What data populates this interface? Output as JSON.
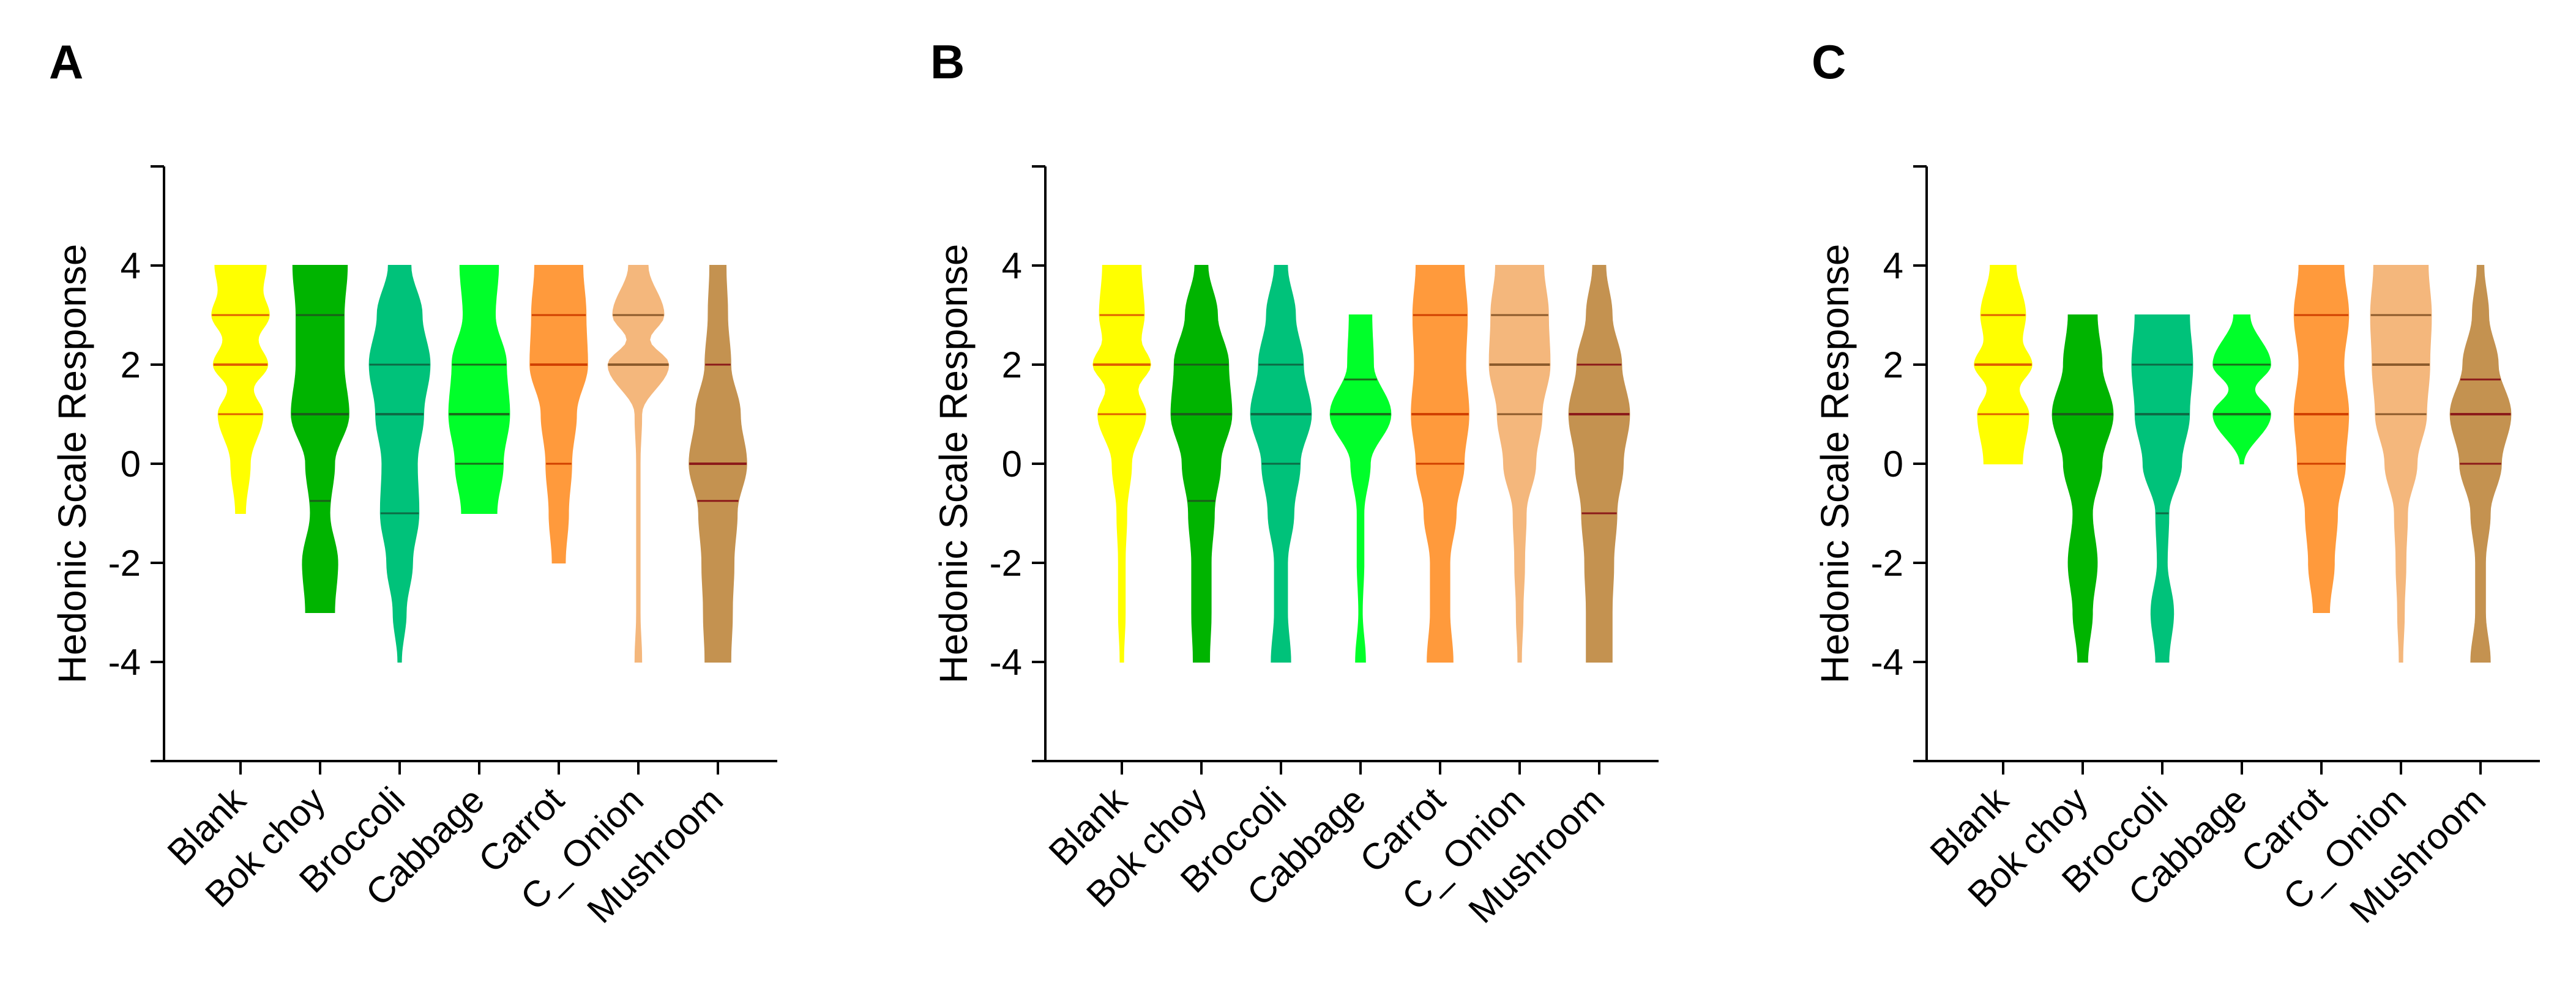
{
  "figure": {
    "panels": [
      "A",
      "B",
      "C"
    ]
  },
  "chart_data": [
    {
      "type": "violin",
      "panel": "A",
      "title": "",
      "xlabel": "",
      "ylabel": "Hedonic Scale Response",
      "ylim": [
        -6,
        6
      ],
      "yticks": [
        -4,
        -2,
        0,
        2,
        4
      ],
      "categories": [
        "Blank",
        "Bok choy",
        "Broccoli",
        "Cabbage",
        "Carrot",
        "C_ Onion",
        "Mushroom"
      ],
      "colors": [
        "#ffff00",
        "#00b400",
        "#00c27a",
        "#00ff2a",
        "#ff9a3c",
        "#f4b77c",
        "#c49250"
      ],
      "series": [
        {
          "name": "Blank",
          "min": -1,
          "max": 4,
          "q1": 1,
          "median": 2,
          "q3": 3,
          "line_color": "#e06000",
          "profile": [
            [
              -1,
              0.15
            ],
            [
              0,
              0.3
            ],
            [
              1,
              0.7
            ],
            [
              1.5,
              0.4
            ],
            [
              2,
              0.85
            ],
            [
              2.5,
              0.55
            ],
            [
              3,
              0.9
            ],
            [
              3.5,
              0.7
            ],
            [
              4,
              0.8
            ]
          ]
        },
        {
          "name": "Bok choy",
          "min": -3,
          "max": 4,
          "q1": -0.75,
          "median": 1,
          "q3": 3,
          "line_color": "#1a5e1a",
          "profile": [
            [
              -3,
              0.45
            ],
            [
              -2,
              0.55
            ],
            [
              -1,
              0.3
            ],
            [
              0,
              0.45
            ],
            [
              1,
              0.9
            ],
            [
              2,
              0.75
            ],
            [
              3,
              0.75
            ],
            [
              4,
              0.85
            ]
          ]
        },
        {
          "name": "Broccoli",
          "min": -4,
          "max": 4,
          "q1": -1,
          "median": 1,
          "q3": 2,
          "line_color": "#0d6b45",
          "profile": [
            [
              -4,
              0.05
            ],
            [
              -3,
              0.2
            ],
            [
              -2,
              0.4
            ],
            [
              -1,
              0.6
            ],
            [
              0,
              0.55
            ],
            [
              1,
              0.75
            ],
            [
              2,
              0.95
            ],
            [
              3,
              0.7
            ],
            [
              4,
              0.35
            ]
          ]
        },
        {
          "name": "Cabbage",
          "min": -1,
          "max": 4,
          "q1": 0,
          "median": 1,
          "q3": 2,
          "line_color": "#1a6e1a",
          "profile": [
            [
              -1,
              0.55
            ],
            [
              0,
              0.75
            ],
            [
              1,
              0.95
            ],
            [
              2,
              0.85
            ],
            [
              3,
              0.5
            ],
            [
              4,
              0.6
            ]
          ]
        },
        {
          "name": "Carrot",
          "min": -2,
          "max": 4,
          "q1": 0,
          "median": 2,
          "q3": 3,
          "line_color": "#d04000",
          "profile": [
            [
              -2,
              0.2
            ],
            [
              -1,
              0.3
            ],
            [
              0,
              0.4
            ],
            [
              1,
              0.55
            ],
            [
              2,
              0.9
            ],
            [
              3,
              0.85
            ],
            [
              4,
              0.75
            ]
          ]
        },
        {
          "name": "C_ Onion",
          "min": -4,
          "max": 4,
          "q1": 2,
          "median": 2,
          "q3": 3,
          "line_color": "#8b5a2b",
          "profile": [
            [
              -4,
              0.1
            ],
            [
              -3,
              0.05
            ],
            [
              -1,
              0.05
            ],
            [
              0,
              0.05
            ],
            [
              1,
              0.1
            ],
            [
              2,
              0.95
            ],
            [
              2.5,
              0.35
            ],
            [
              3,
              0.8
            ],
            [
              4,
              0.3
            ]
          ]
        },
        {
          "name": "Mushroom",
          "min": -4,
          "max": 4,
          "q1": -0.75,
          "median": 0,
          "q3": 2,
          "line_color": "#8b1a1a",
          "profile": [
            [
              -4,
              0.4
            ],
            [
              -3,
              0.45
            ],
            [
              -2,
              0.5
            ],
            [
              -1,
              0.6
            ],
            [
              0,
              0.9
            ],
            [
              1,
              0.7
            ],
            [
              2,
              0.4
            ],
            [
              3,
              0.3
            ],
            [
              4,
              0.25
            ]
          ]
        }
      ]
    },
    {
      "type": "violin",
      "panel": "B",
      "title": "",
      "xlabel": "",
      "ylabel": "Hedonic Scale Response",
      "ylim": [
        -6,
        6
      ],
      "yticks": [
        -4,
        -2,
        0,
        2,
        4
      ],
      "categories": [
        "Blank",
        "Bok choy",
        "Broccoli",
        "Cabbage",
        "Carrot",
        "C_ Onion",
        "Mushroom"
      ],
      "colors": [
        "#ffff00",
        "#00b400",
        "#00c27a",
        "#00ff2a",
        "#ff9a3c",
        "#f4b77c",
        "#c49250"
      ],
      "series": [
        {
          "name": "Blank",
          "min": -4,
          "max": 4,
          "q1": 1,
          "median": 2,
          "q3": 3,
          "line_color": "#e06000",
          "profile": [
            [
              -4,
              0.05
            ],
            [
              -3,
              0.1
            ],
            [
              -2,
              0.1
            ],
            [
              -1,
              0.15
            ],
            [
              0,
              0.3
            ],
            [
              1,
              0.75
            ],
            [
              1.5,
              0.5
            ],
            [
              2,
              0.9
            ],
            [
              2.5,
              0.6
            ],
            [
              3,
              0.7
            ],
            [
              4,
              0.6
            ]
          ]
        },
        {
          "name": "Bok choy",
          "min": -4,
          "max": 4,
          "q1": -0.75,
          "median": 1,
          "q3": 2,
          "line_color": "#1a5e1a",
          "profile": [
            [
              -4,
              0.25
            ],
            [
              -3,
              0.3
            ],
            [
              -2,
              0.3
            ],
            [
              -1,
              0.4
            ],
            [
              0,
              0.6
            ],
            [
              1,
              0.95
            ],
            [
              2,
              0.85
            ],
            [
              3,
              0.5
            ],
            [
              4,
              0.2
            ]
          ]
        },
        {
          "name": "Broccoli",
          "min": -4,
          "max": 4,
          "q1": 0,
          "median": 1,
          "q3": 2,
          "line_color": "#0d6b45",
          "profile": [
            [
              -4,
              0.3
            ],
            [
              -3,
              0.2
            ],
            [
              -2,
              0.2
            ],
            [
              -1,
              0.4
            ],
            [
              0,
              0.6
            ],
            [
              1,
              0.95
            ],
            [
              2,
              0.7
            ],
            [
              3,
              0.45
            ],
            [
              4,
              0.2
            ]
          ]
        },
        {
          "name": "Cabbage",
          "min": -4,
          "max": 3,
          "q1": 1,
          "median": 1,
          "q3": 1.7,
          "line_color": "#1a6e1a",
          "profile": [
            [
              -4,
              0.15
            ],
            [
              -3,
              0.05
            ],
            [
              -2,
              0.1
            ],
            [
              -1,
              0.1
            ],
            [
              0,
              0.3
            ],
            [
              1,
              0.95
            ],
            [
              2,
              0.4
            ],
            [
              3,
              0.35
            ]
          ]
        },
        {
          "name": "Carrot",
          "min": -4,
          "max": 4,
          "q1": 0,
          "median": 1,
          "q3": 3,
          "line_color": "#d04000",
          "profile": [
            [
              -4,
              0.4
            ],
            [
              -3,
              0.3
            ],
            [
              -2,
              0.3
            ],
            [
              -1,
              0.5
            ],
            [
              0,
              0.75
            ],
            [
              1,
              0.9
            ],
            [
              2,
              0.8
            ],
            [
              3,
              0.85
            ],
            [
              4,
              0.75
            ]
          ]
        },
        {
          "name": "C_ Onion",
          "min": -4,
          "max": 4,
          "q1": 1,
          "median": 2,
          "q3": 3,
          "line_color": "#8b5a2b",
          "profile": [
            [
              -4,
              0.05
            ],
            [
              -3,
              0.1
            ],
            [
              -2,
              0.15
            ],
            [
              -1,
              0.2
            ],
            [
              0,
              0.5
            ],
            [
              1,
              0.7
            ],
            [
              2,
              0.95
            ],
            [
              3,
              0.9
            ],
            [
              4,
              0.75
            ]
          ]
        },
        {
          "name": "Mushroom",
          "min": -4,
          "max": 4,
          "q1": -1,
          "median": 1,
          "q3": 2,
          "line_color": "#8b1a1a",
          "profile": [
            [
              -4,
              0.4
            ],
            [
              -3,
              0.4
            ],
            [
              -2,
              0.45
            ],
            [
              -1,
              0.55
            ],
            [
              0,
              0.75
            ],
            [
              1,
              0.95
            ],
            [
              2,
              0.7
            ],
            [
              3,
              0.4
            ],
            [
              4,
              0.2
            ]
          ]
        }
      ]
    },
    {
      "type": "violin",
      "panel": "C",
      "title": "",
      "xlabel": "",
      "ylabel": "Hedonic Scale Response",
      "ylim": [
        -6,
        6
      ],
      "yticks": [
        -4,
        -2,
        0,
        2,
        4
      ],
      "categories": [
        "Blank",
        "Bok choy",
        "Broccoli",
        "Cabbage",
        "Carrot",
        "C_ Onion",
        "Mushroom"
      ],
      "colors": [
        "#ffff00",
        "#00b400",
        "#00c27a",
        "#00ff2a",
        "#ff9a3c",
        "#f4b77c",
        "#c49250"
      ],
      "series": [
        {
          "name": "Blank",
          "min": 0,
          "max": 4,
          "q1": 1,
          "median": 2,
          "q3": 3,
          "line_color": "#e06000",
          "profile": [
            [
              0,
              0.6
            ],
            [
              1,
              0.8
            ],
            [
              1.5,
              0.5
            ],
            [
              2,
              0.9
            ],
            [
              2.5,
              0.6
            ],
            [
              3,
              0.7
            ],
            [
              4,
              0.4
            ]
          ]
        },
        {
          "name": "Bok choy",
          "min": -4,
          "max": 3,
          "q1": 1,
          "median": 1,
          "q3": 1,
          "line_color": "#1a5e1a",
          "profile": [
            [
              -4,
              0.15
            ],
            [
              -3,
              0.3
            ],
            [
              -2,
              0.45
            ],
            [
              -1,
              0.3
            ],
            [
              0,
              0.6
            ],
            [
              1,
              0.95
            ],
            [
              2,
              0.6
            ],
            [
              3,
              0.45
            ]
          ]
        },
        {
          "name": "Broccoli",
          "min": -4,
          "max": 3,
          "q1": -1,
          "median": 1,
          "q3": 2,
          "line_color": "#0d6b45",
          "profile": [
            [
              -4,
              0.2
            ],
            [
              -3,
              0.35
            ],
            [
              -2,
              0.15
            ],
            [
              -1,
              0.2
            ],
            [
              0,
              0.6
            ],
            [
              1,
              0.85
            ],
            [
              2,
              0.95
            ],
            [
              3,
              0.85
            ]
          ]
        },
        {
          "name": "Cabbage",
          "min": 0,
          "max": 3,
          "q1": 1,
          "median": 1,
          "q3": 2,
          "line_color": "#1a6e1a",
          "profile": [
            [
              0,
              0.05
            ],
            [
              1,
              0.9
            ],
            [
              1.5,
              0.4
            ],
            [
              2,
              0.9
            ],
            [
              3,
              0.25
            ]
          ]
        },
        {
          "name": "Carrot",
          "min": -3,
          "max": 4,
          "q1": 0,
          "median": 1,
          "q3": 3,
          "line_color": "#d04000",
          "profile": [
            [
              -3,
              0.25
            ],
            [
              -2,
              0.4
            ],
            [
              -1,
              0.5
            ],
            [
              0,
              0.75
            ],
            [
              1,
              0.85
            ],
            [
              2,
              0.7
            ],
            [
              3,
              0.85
            ],
            [
              4,
              0.7
            ]
          ]
        },
        {
          "name": "C_ Onion",
          "min": -4,
          "max": 4,
          "q1": 1,
          "median": 2,
          "q3": 3,
          "line_color": "#8b5a2b",
          "profile": [
            [
              -4,
              0.05
            ],
            [
              -3,
              0.1
            ],
            [
              -2,
              0.15
            ],
            [
              -1,
              0.2
            ],
            [
              0,
              0.5
            ],
            [
              1,
              0.8
            ],
            [
              2,
              0.9
            ],
            [
              3,
              0.95
            ],
            [
              4,
              0.85
            ]
          ]
        },
        {
          "name": "Mushroom",
          "min": -4,
          "max": 4,
          "q1": 0,
          "median": 1,
          "q3": 1.7,
          "line_color": "#8b1a1a",
          "profile": [
            [
              -4,
              0.3
            ],
            [
              -3,
              0.15
            ],
            [
              -2,
              0.15
            ],
            [
              -1,
              0.3
            ],
            [
              0,
              0.65
            ],
            [
              1,
              0.95
            ],
            [
              2,
              0.55
            ],
            [
              3,
              0.25
            ],
            [
              4,
              0.1
            ]
          ]
        }
      ]
    }
  ]
}
